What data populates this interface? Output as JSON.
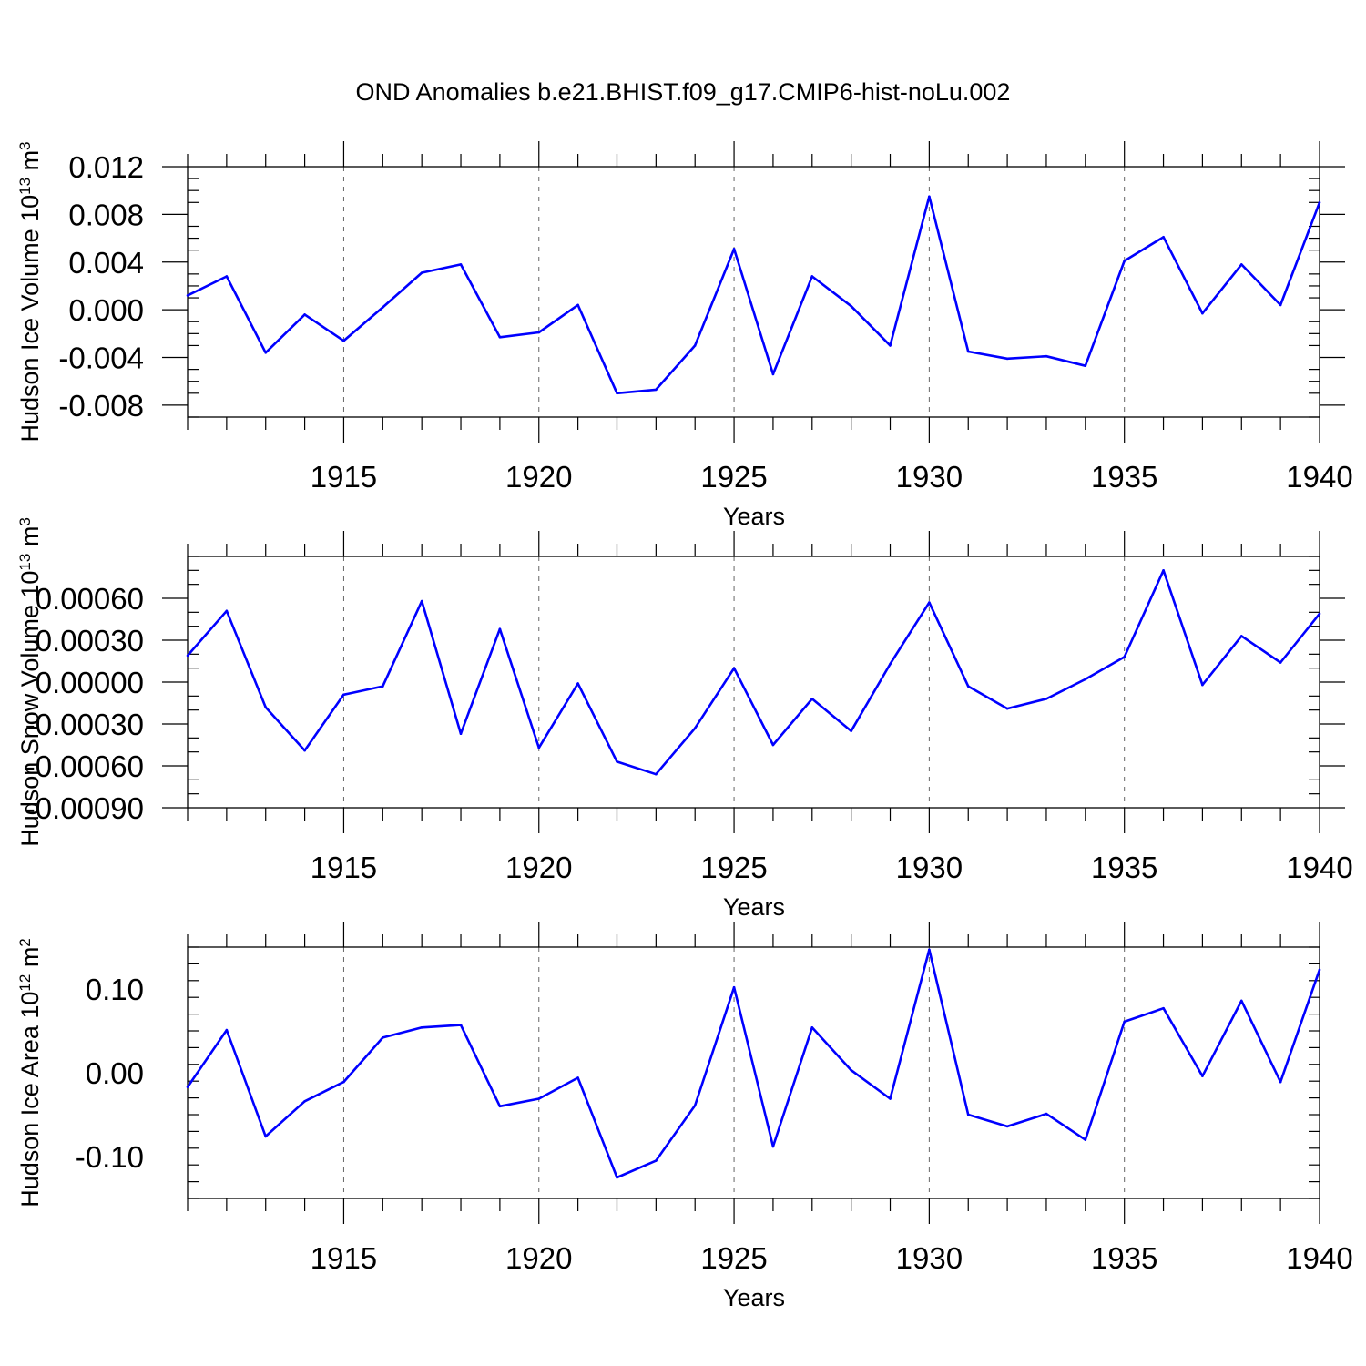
{
  "title": "OND Anomalies b.e21.BHIST.f09_g17.CMIP6-hist-noLu.002",
  "line_color": "#0000ff",
  "chart_data": [
    {
      "type": "line",
      "ylabel_main": "Hudson Ice Volume 10",
      "ylabel_exp": "13",
      "ylabel_unit": " m",
      "ylabel_unit_exp": "3",
      "xlabel": "Years",
      "xlim": [
        1911,
        1940
      ],
      "ylim": [
        -0.009,
        0.012
      ],
      "x_ticks": [
        1915,
        1920,
        1925,
        1930,
        1935,
        1940
      ],
      "x_tick_labels": [
        "1915",
        "1920",
        "1925",
        "1930",
        "1935",
        "1940"
      ],
      "y_ticks": [
        -0.008,
        -0.004,
        0.0,
        0.004,
        0.008,
        0.012
      ],
      "y_tick_labels": [
        "-0.008",
        "-0.004",
        "0.000",
        "0.004",
        "0.008",
        "0.012"
      ],
      "y_minor_step": 0.001,
      "x": [
        1911,
        1912,
        1913,
        1914,
        1915,
        1916,
        1917,
        1918,
        1919,
        1920,
        1921,
        1922,
        1923,
        1924,
        1925,
        1926,
        1927,
        1928,
        1929,
        1930,
        1931,
        1932,
        1933,
        1934,
        1935,
        1936,
        1937,
        1938,
        1939,
        1940
      ],
      "values": [
        0.0012,
        0.0028,
        -0.0036,
        -0.0004,
        -0.0026,
        0.0002,
        0.0031,
        0.0038,
        -0.0023,
        -0.0019,
        0.0004,
        -0.007,
        -0.0067,
        -0.003,
        0.0051,
        -0.0054,
        0.0028,
        0.0003,
        -0.003,
        0.0095,
        -0.0035,
        -0.0041,
        -0.0039,
        -0.0047,
        0.0041,
        0.0061,
        -0.0003,
        0.0038,
        0.0004,
        0.009
      ]
    },
    {
      "type": "line",
      "ylabel_main": "Hudson Snow Volume 10",
      "ylabel_exp": "13",
      "ylabel_unit": " m",
      "ylabel_unit_exp": "3",
      "xlabel": "Years",
      "xlim": [
        1911,
        1940
      ],
      "ylim": [
        -0.0009,
        0.0009
      ],
      "x_ticks": [
        1915,
        1920,
        1925,
        1930,
        1935,
        1940
      ],
      "x_tick_labels": [
        "1915",
        "1920",
        "1925",
        "1930",
        "1935",
        "1940"
      ],
      "y_ticks": [
        -0.0009,
        -0.0006,
        -0.0003,
        0.0,
        0.0003,
        0.0006
      ],
      "y_tick_labels": [
        "-0.00090",
        "-0.00060",
        "-0.00030",
        "0.00000",
        "0.00030",
        "0.00060"
      ],
      "y_minor_step": 0.0001,
      "x": [
        1911,
        1912,
        1913,
        1914,
        1915,
        1916,
        1917,
        1918,
        1919,
        1920,
        1921,
        1922,
        1923,
        1924,
        1925,
        1926,
        1927,
        1928,
        1929,
        1930,
        1931,
        1932,
        1933,
        1934,
        1935,
        1936,
        1937,
        1938,
        1939,
        1940
      ],
      "values": [
        0.00019,
        0.00051,
        -0.00018,
        -0.00049,
        -9e-05,
        -3e-05,
        0.00058,
        -0.00037,
        0.00038,
        -0.00047,
        -1e-05,
        -0.00057,
        -0.00066,
        -0.00033,
        0.0001,
        -0.00045,
        -0.00012,
        -0.00035,
        0.00013,
        0.00057,
        -3e-05,
        -0.00019,
        -0.00012,
        2e-05,
        0.00018,
        0.0008,
        -2e-05,
        0.00033,
        0.00014,
        0.00049
      ]
    },
    {
      "type": "line",
      "ylabel_main": "Hudson Ice Area 10",
      "ylabel_exp": "12",
      "ylabel_unit": " m",
      "ylabel_unit_exp": "2",
      "xlabel": "Years",
      "xlim": [
        1911,
        1940
      ],
      "ylim": [
        -0.15,
        0.15
      ],
      "x_ticks": [
        1915,
        1920,
        1925,
        1930,
        1935,
        1940
      ],
      "x_tick_labels": [
        "1915",
        "1920",
        "1925",
        "1930",
        "1935",
        "1940"
      ],
      "y_ticks": [
        -0.1,
        0.0,
        0.1
      ],
      "y_tick_labels": [
        "-0.10",
        "0.00",
        "0.10"
      ],
      "y_minor_step": 0.02,
      "x": [
        1911,
        1912,
        1913,
        1914,
        1915,
        1916,
        1917,
        1918,
        1919,
        1920,
        1921,
        1922,
        1923,
        1924,
        1925,
        1926,
        1927,
        1928,
        1929,
        1930,
        1931,
        1932,
        1933,
        1934,
        1935,
        1936,
        1937,
        1938,
        1939,
        1940
      ],
      "values": [
        -0.017,
        0.051,
        -0.076,
        -0.034,
        -0.011,
        0.042,
        0.054,
        0.057,
        -0.04,
        -0.031,
        -0.006,
        -0.125,
        -0.105,
        -0.039,
        0.102,
        -0.088,
        0.054,
        0.003,
        -0.031,
        0.147,
        -0.05,
        -0.064,
        -0.049,
        -0.08,
        0.061,
        0.077,
        -0.004,
        0.086,
        -0.011,
        0.123
      ]
    }
  ]
}
